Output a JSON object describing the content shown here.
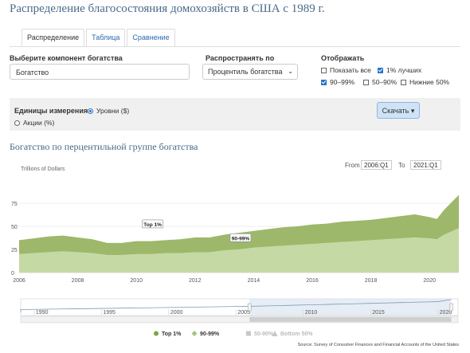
{
  "header": {
    "title": "Распределение благосостояния домохозяйств в США с 1989 г."
  },
  "tabs": [
    {
      "label": "Распределение",
      "active": true
    },
    {
      "label": "Таблица",
      "active": false
    },
    {
      "label": "Сравнение",
      "active": false
    }
  ],
  "controls": {
    "component_label": "Выберите компонент богатства",
    "component_value": "Богатство",
    "spread_label": "Распространять по",
    "spread_value": "Процентиль богатства",
    "display_label": "Отображать",
    "display_options": [
      {
        "label": "Показать все",
        "checked": false
      },
      {
        "label": "1% лучших",
        "checked": true
      },
      {
        "label": "90–99%",
        "checked": true
      },
      {
        "label": "50–90%",
        "checked": false
      },
      {
        "label": "Нижние 50%",
        "checked": false
      }
    ],
    "units_label": "Единицы измерения",
    "units_options": [
      {
        "label": "Уровни ($)",
        "selected": true
      },
      {
        "label": "Акции (%)",
        "selected": false
      }
    ],
    "download_label": "Скачать"
  },
  "chart_title": "Богатство по перцентильной группе богатства",
  "range": {
    "from_label": "From",
    "from_value": "2006:Q1",
    "to_label": "To",
    "to_value": "2021:Q1"
  },
  "chart_data": {
    "type": "area",
    "stacked": true,
    "ylabel": "Trillions of Dollars",
    "ylim": [
      0,
      100
    ],
    "yticks": [
      "0",
      "25",
      "50",
      "75"
    ],
    "xticks": [
      "2006",
      "2008",
      "2010",
      "2012",
      "2014",
      "2016",
      "2018",
      "2020"
    ],
    "x": [
      2006.0,
      2006.5,
      2007.0,
      2007.5,
      2008.0,
      2008.5,
      2009.0,
      2009.5,
      2010.0,
      2010.5,
      2011.0,
      2011.5,
      2012.0,
      2012.5,
      2013.0,
      2013.5,
      2014.0,
      2014.5,
      2015.0,
      2015.5,
      2016.0,
      2016.5,
      2017.0,
      2017.5,
      2018.0,
      2018.5,
      2019.0,
      2019.5,
      2020.0,
      2020.25,
      2020.5,
      2021.0
    ],
    "series": [
      {
        "name": "90-99%",
        "color": "#c5d9a4",
        "values": [
          20,
          21,
          22,
          23,
          22,
          21,
          19,
          19,
          20,
          20,
          21,
          21,
          22,
          22,
          24,
          25,
          27,
          28,
          29,
          30,
          31,
          32,
          33,
          34,
          35,
          36,
          37,
          38,
          37,
          36,
          41,
          48
        ]
      },
      {
        "name": "Top 1%",
        "color": "#9db86a",
        "values": [
          15,
          16,
          17,
          17,
          16,
          15,
          13,
          13,
          14,
          14,
          14,
          15,
          16,
          16,
          17,
          18,
          18,
          19,
          20,
          20,
          21,
          21,
          22,
          22,
          22,
          23,
          24,
          25,
          23,
          22,
          27,
          36
        ]
      }
    ],
    "annotations": [
      "Top 1%",
      "90-99%"
    ],
    "legend": [
      {
        "name": "Top 1%",
        "color": "#7ea34a",
        "active": true
      },
      {
        "name": "90-99%",
        "color": "#a8c37c",
        "active": true
      },
      {
        "name": "50-90%",
        "color": "#c8c8c8",
        "active": false
      },
      {
        "name": "Bottom 50%",
        "color": "#c8c8c8",
        "active": false
      }
    ],
    "navigator_ticks": [
      "1990",
      "1995",
      "2000",
      "2005",
      "2010",
      "2015",
      "2020"
    ],
    "source": "Source: Survey of Consumer Finances and Financial Accounts of the United States"
  }
}
